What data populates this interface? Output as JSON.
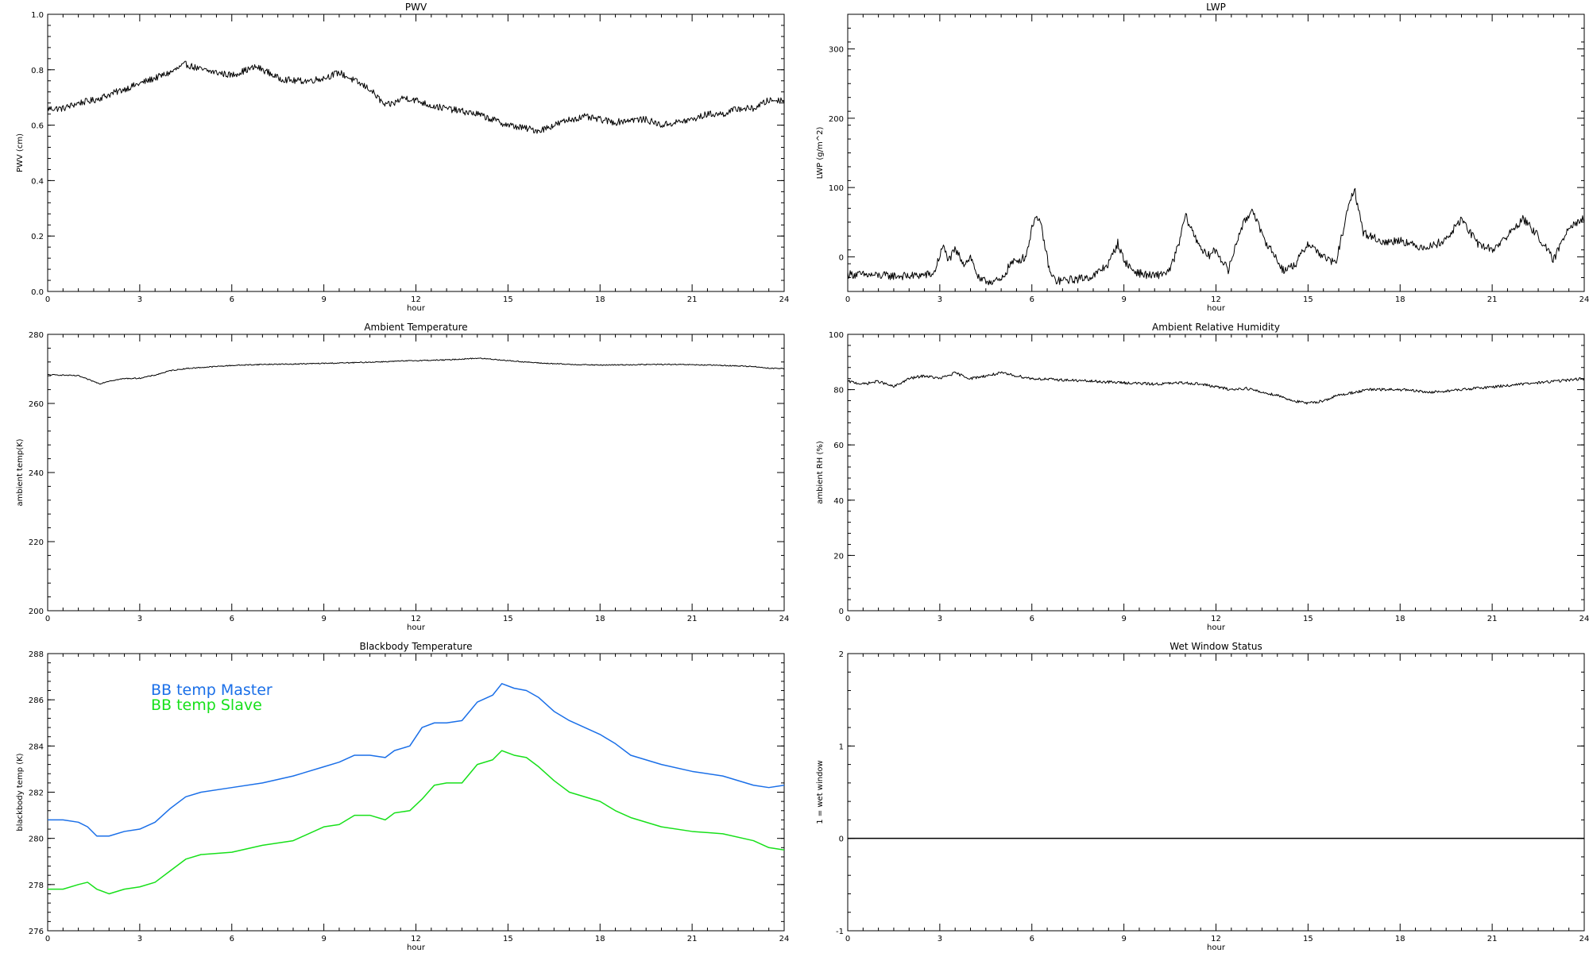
{
  "chart_data": [
    {
      "id": "pwv",
      "type": "line",
      "title": "PWV",
      "xlabel": "hour",
      "ylabel": "PWV (cm)",
      "xlim": [
        0,
        24
      ],
      "ylim": [
        0.0,
        1.0
      ],
      "xticks": [
        0,
        3,
        6,
        9,
        12,
        15,
        18,
        21,
        24
      ],
      "yticks": [
        0.0,
        0.2,
        0.4,
        0.6,
        0.8,
        1.0
      ],
      "ytick_labels": [
        "0.0",
        "0.2",
        "0.4",
        "0.6",
        "0.8",
        "1.0"
      ],
      "noise": 0.012,
      "series": [
        {
          "color": "#000000",
          "x": [
            0,
            0.5,
            1,
            1.5,
            2,
            2.5,
            3,
            3.5,
            4,
            4.5,
            5,
            5.5,
            6,
            6.5,
            6.8,
            7.2,
            7.5,
            8,
            8.5,
            9,
            9.5,
            10,
            10.5,
            11,
            11.3,
            11.6,
            12,
            12.5,
            13,
            13.5,
            14,
            14.5,
            15,
            15.5,
            16,
            16.5,
            17,
            17.5,
            18,
            18.5,
            19,
            19.5,
            20,
            20.5,
            21,
            21.5,
            22,
            22.5,
            23,
            23.5,
            24
          ],
          "y": [
            0.66,
            0.66,
            0.68,
            0.69,
            0.71,
            0.73,
            0.75,
            0.77,
            0.79,
            0.82,
            0.8,
            0.79,
            0.78,
            0.8,
            0.81,
            0.79,
            0.77,
            0.76,
            0.76,
            0.77,
            0.79,
            0.76,
            0.73,
            0.67,
            0.68,
            0.7,
            0.69,
            0.67,
            0.66,
            0.65,
            0.64,
            0.62,
            0.6,
            0.59,
            0.58,
            0.6,
            0.62,
            0.63,
            0.62,
            0.61,
            0.62,
            0.62,
            0.6,
            0.61,
            0.62,
            0.64,
            0.64,
            0.66,
            0.66,
            0.69,
            0.69
          ]
        }
      ]
    },
    {
      "id": "lwp",
      "type": "line",
      "title": "LWP",
      "xlabel": "hour",
      "ylabel": "LWP (g/m^2)",
      "xlim": [
        0,
        24
      ],
      "ylim": [
        -50,
        350
      ],
      "xticks": [
        0,
        3,
        6,
        9,
        12,
        15,
        18,
        21,
        24
      ],
      "yticks": [
        0,
        100,
        200,
        300
      ],
      "ytick_labels": [
        "0",
        "100",
        "200",
        "300"
      ],
      "noise": 6,
      "series": [
        {
          "color": "#000000",
          "x": [
            0,
            1,
            2,
            2.8,
            3.1,
            3.3,
            3.5,
            3.8,
            4.0,
            4.3,
            5.0,
            5.3,
            5.8,
            6.1,
            6.3,
            6.6,
            6.8,
            7.5,
            8.0,
            8.5,
            8.8,
            9.0,
            9.3,
            9.6,
            10.0,
            10.5,
            10.8,
            11.0,
            11.3,
            11.7,
            12.0,
            12.4,
            12.8,
            13.2,
            13.5,
            13.8,
            14.2,
            14.6,
            15.0,
            15.5,
            15.9,
            16.2,
            16.5,
            16.8,
            17.5,
            18.0,
            18.5,
            19.0,
            19.5,
            20.0,
            20.5,
            21.0,
            21.5,
            22.0,
            22.5,
            23.0,
            23.5,
            24
          ],
          "y": [
            -25,
            -27,
            -28,
            -25,
            15,
            -5,
            10,
            -10,
            0,
            -35,
            -35,
            -10,
            0,
            60,
            45,
            -25,
            -35,
            -32,
            -28,
            -10,
            20,
            -5,
            -20,
            -25,
            -28,
            -20,
            20,
            60,
            30,
            0,
            10,
            -20,
            40,
            70,
            30,
            10,
            -20,
            -10,
            20,
            0,
            -10,
            50,
            100,
            35,
            20,
            25,
            15,
            15,
            25,
            55,
            20,
            10,
            30,
            55,
            30,
            -5,
            45,
            55
          ]
        }
      ]
    },
    {
      "id": "temp",
      "type": "line",
      "title": "Ambient Temperature",
      "xlabel": "hour",
      "ylabel": "ambient temp(K)",
      "xlim": [
        0,
        24
      ],
      "ylim": [
        200,
        280
      ],
      "xticks": [
        0,
        3,
        6,
        9,
        12,
        15,
        18,
        21,
        24
      ],
      "yticks": [
        200,
        220,
        240,
        260,
        280
      ],
      "ytick_labels": [
        "200",
        "220",
        "240",
        "260",
        "280"
      ],
      "noise": 0.15,
      "series": [
        {
          "color": "#000000",
          "x": [
            0,
            0.5,
            1,
            1.3,
            1.7,
            2,
            2.5,
            3,
            3.5,
            4,
            4.5,
            5,
            6,
            7,
            8,
            9,
            10,
            11,
            12,
            13,
            14,
            14.5,
            15,
            16,
            17,
            18,
            19,
            20,
            21,
            22,
            23,
            23.5,
            24
          ],
          "y": [
            268.3,
            268.2,
            268.0,
            267.0,
            265.7,
            266.5,
            267.2,
            267.3,
            268.2,
            269.5,
            270.1,
            270.4,
            271.0,
            271.3,
            271.4,
            271.6,
            271.8,
            272.1,
            272.4,
            272.6,
            273.1,
            272.8,
            272.4,
            271.7,
            271.3,
            271.1,
            271.2,
            271.3,
            271.2,
            271.0,
            270.7,
            270.2,
            270.1
          ]
        }
      ]
    },
    {
      "id": "rh",
      "type": "line",
      "title": "Ambient Relative Humidity",
      "xlabel": "hour",
      "ylabel": "ambient RH (%)",
      "xlim": [
        0,
        24
      ],
      "ylim": [
        0,
        100
      ],
      "xticks": [
        0,
        3,
        6,
        9,
        12,
        15,
        18,
        21,
        24
      ],
      "yticks": [
        0,
        20,
        40,
        60,
        80,
        100
      ],
      "ytick_labels": [
        "0",
        "20",
        "40",
        "60",
        "80",
        "100"
      ],
      "noise": 0.5,
      "series": [
        {
          "color": "#000000",
          "x": [
            0,
            0.5,
            1,
            1.5,
            2,
            2.5,
            3,
            3.5,
            4,
            4.5,
            5,
            5.5,
            6,
            7,
            8,
            9,
            10,
            11,
            11.5,
            12,
            12.5,
            13,
            13.5,
            14,
            14.5,
            15,
            15.5,
            16,
            16.5,
            17,
            18,
            19,
            20,
            21,
            22,
            23,
            24
          ],
          "y": [
            83,
            82,
            83,
            81,
            84,
            85,
            84,
            86,
            84,
            85,
            86,
            85,
            84,
            83.5,
            83,
            82.5,
            82,
            82.5,
            82,
            81,
            80,
            80.5,
            79,
            78,
            76,
            75,
            76,
            78,
            79,
            80,
            80,
            79,
            80,
            81,
            82,
            83,
            84
          ]
        }
      ]
    },
    {
      "id": "bb",
      "type": "line",
      "title": "Blackbody Temperature",
      "xlabel": "hour",
      "ylabel": "blackbody temp (K)",
      "xlim": [
        0,
        24
      ],
      "ylim": [
        276,
        288
      ],
      "xticks": [
        0,
        3,
        6,
        9,
        12,
        15,
        18,
        21,
        24
      ],
      "yticks": [
        276,
        278,
        280,
        282,
        284,
        286,
        288
      ],
      "ytick_labels": [
        "276",
        "278",
        "280",
        "282",
        "284",
        "286",
        "288"
      ],
      "noise": 0,
      "series": [
        {
          "name": "BB temp Master",
          "color": "#1a6fe8",
          "x": [
            0,
            0.5,
            1,
            1.3,
            1.6,
            2,
            2.5,
            3,
            3.5,
            4,
            4.5,
            5,
            6,
            7,
            8,
            9,
            9.5,
            10,
            10.5,
            11,
            11.3,
            11.8,
            12.2,
            12.6,
            13,
            13.5,
            14,
            14.5,
            14.8,
            15.2,
            15.6,
            16,
            16.5,
            17,
            18,
            18.5,
            19,
            20,
            21,
            22,
            23,
            23.5,
            24
          ],
          "y": [
            280.8,
            280.8,
            280.7,
            280.5,
            280.1,
            280.1,
            280.3,
            280.4,
            280.7,
            281.3,
            281.8,
            282.0,
            282.2,
            282.4,
            282.7,
            283.1,
            283.3,
            283.6,
            283.6,
            283.5,
            283.8,
            284.0,
            284.8,
            285.0,
            285.0,
            285.1,
            285.9,
            286.2,
            286.7,
            286.5,
            286.4,
            286.1,
            285.5,
            285.1,
            284.5,
            284.1,
            283.6,
            283.2,
            282.9,
            282.7,
            282.3,
            282.2,
            282.3
          ]
        },
        {
          "name": "BB temp Slave",
          "color": "#17e01a",
          "x": [
            0,
            0.5,
            1,
            1.3,
            1.6,
            2,
            2.5,
            3,
            3.5,
            4,
            4.5,
            5,
            6,
            7,
            8,
            9,
            9.5,
            10,
            10.5,
            11,
            11.3,
            11.8,
            12.2,
            12.6,
            13,
            13.5,
            14,
            14.5,
            14.8,
            15.2,
            15.6,
            16,
            16.5,
            17,
            18,
            18.5,
            19,
            20,
            21,
            22,
            23,
            23.5,
            24
          ],
          "y": [
            277.8,
            277.8,
            278.0,
            278.1,
            277.8,
            277.6,
            277.8,
            277.9,
            278.1,
            278.6,
            279.1,
            279.3,
            279.4,
            279.7,
            279.9,
            280.5,
            280.6,
            281.0,
            281.0,
            280.8,
            281.1,
            281.2,
            281.7,
            282.3,
            282.4,
            282.4,
            283.2,
            283.4,
            283.8,
            283.6,
            283.5,
            283.1,
            282.5,
            282.0,
            281.6,
            281.2,
            280.9,
            280.5,
            280.3,
            280.2,
            279.9,
            279.6,
            279.5
          ]
        }
      ]
    },
    {
      "id": "wet",
      "type": "line",
      "title": "Wet Window Status",
      "xlabel": "hour",
      "ylabel": "1 = wet window",
      "xlim": [
        0,
        24
      ],
      "ylim": [
        -1,
        2
      ],
      "xticks": [
        0,
        3,
        6,
        9,
        12,
        15,
        18,
        21,
        24
      ],
      "yticks": [
        -1,
        0,
        1,
        2
      ],
      "ytick_labels": [
        "-1",
        "0",
        "1",
        "2"
      ],
      "noise": 0,
      "series": [
        {
          "color": "#000000",
          "x": [
            0,
            24
          ],
          "y": [
            0,
            0
          ]
        }
      ]
    }
  ]
}
